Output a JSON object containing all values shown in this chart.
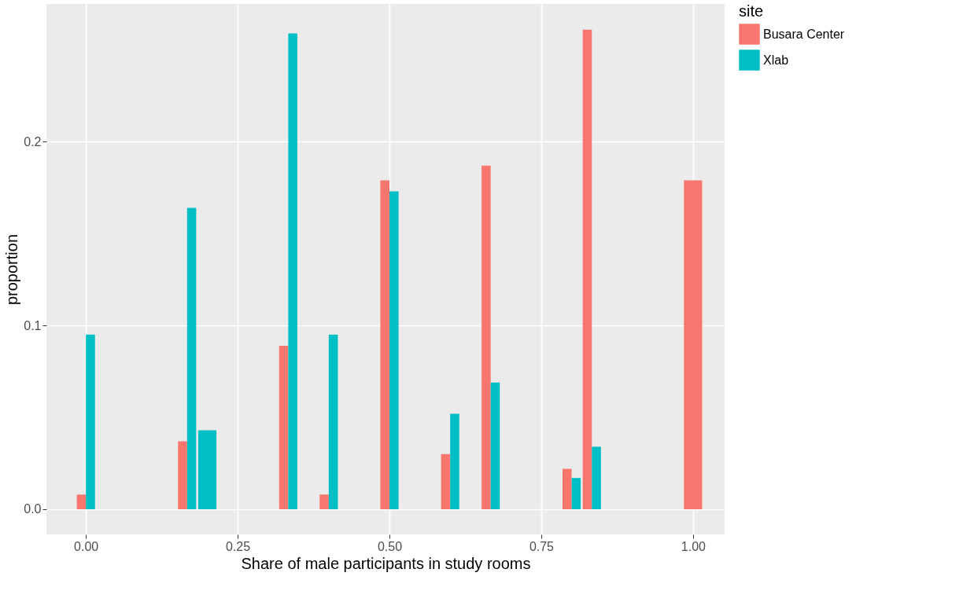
{
  "chart_data": {
    "type": "bar",
    "xlabel": "Share of male participants in study rooms",
    "ylabel": "proportion",
    "legend_title": "site",
    "x": [
      0,
      0.1667,
      0.2,
      0.3333,
      0.4,
      0.5,
      0.6,
      0.6667,
      0.8,
      0.8333,
      1
    ],
    "series": [
      {
        "name": "Busara Center",
        "color": "#f8766d",
        "values": [
          0.008,
          0.037,
          null,
          0.089,
          0.008,
          0.179,
          0.03,
          0.187,
          0.022,
          0.261,
          0.179
        ]
      },
      {
        "name": "Xlab",
        "color": "#00bfc4",
        "values": [
          0.095,
          0.164,
          0.043,
          0.259,
          0.095,
          0.173,
          0.052,
          0.069,
          0.017,
          0.034,
          null
        ]
      }
    ],
    "xlim": [
      -0.065,
      1.052
    ],
    "ylim": [
      -0.0137,
      0.275
    ],
    "xticks": [
      {
        "value": 0,
        "label": "0.00"
      },
      0.25,
      {
        "value": 0.5,
        "label": "0.50"
      },
      0.75,
      {
        "value": 1,
        "label": "1.00"
      }
    ],
    "yticks": [
      {
        "value": 0,
        "label": "0.0"
      },
      0.1,
      0.2
    ],
    "grid": true,
    "legend": "right"
  }
}
